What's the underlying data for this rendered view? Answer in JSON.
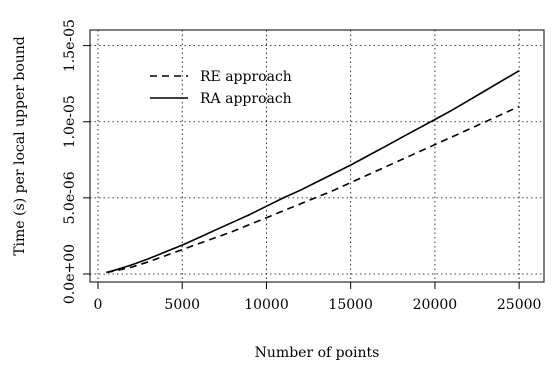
{
  "chart_data": {
    "type": "line",
    "title": "",
    "xlabel": "Number of points",
    "ylabel": "Time (s) per local upper bound",
    "xlim": [
      0,
      26000
    ],
    "ylim": [
      0,
      1.55e-05
    ],
    "x_ticks": [
      0,
      5000,
      10000,
      15000,
      20000,
      25000
    ],
    "x_tick_labels": [
      "0",
      "5000",
      "10000",
      "15000",
      "20000",
      "25000"
    ],
    "y_ticks": [
      0,
      5e-06,
      1e-05,
      1.5e-05
    ],
    "y_tick_labels": [
      "0.0e+00",
      "5.0e-06",
      "1.0e-05",
      "1.5e-05"
    ],
    "grid": true,
    "legend_position": "top-left",
    "x": [
      500,
      1000,
      2000,
      3000,
      4000,
      5000,
      6000,
      7000,
      8000,
      9000,
      10000,
      11000,
      12000,
      13000,
      14000,
      15000,
      16000,
      17000,
      18000,
      19000,
      20000,
      21000,
      22000,
      23000,
      24000,
      25000
    ],
    "series": [
      {
        "name": "RE approach",
        "line_style": "dashed",
        "color": "#000000",
        "values": [
          1e-07,
          2e-07,
          4.5e-07,
          8e-07,
          1.2e-06,
          1.6e-06,
          2e-06,
          2.4e-06,
          2.8e-06,
          3.25e-06,
          3.7e-06,
          4.15e-06,
          4.6e-06,
          5.05e-06,
          5.5e-06,
          6e-06,
          6.5e-06,
          7e-06,
          7.5e-06,
          8e-06,
          8.5e-06,
          9e-06,
          9.5e-06,
          1e-05,
          1.05e-05,
          1.1e-05
        ]
      },
      {
        "name": "RA approach",
        "line_style": "solid",
        "color": "#000000",
        "values": [
          1e-07,
          2.5e-07,
          6e-07,
          1e-06,
          1.45e-06,
          1.9e-06,
          2.4e-06,
          2.9e-06,
          3.4e-06,
          3.9e-06,
          4.45e-06,
          5e-06,
          5.5e-06,
          6.05e-06,
          6.6e-06,
          7.15e-06,
          7.75e-06,
          8.35e-06,
          8.95e-06,
          9.55e-06,
          1.015e-05,
          1.075e-05,
          1.14e-05,
          1.205e-05,
          1.27e-05,
          1.335e-05
        ]
      }
    ]
  }
}
